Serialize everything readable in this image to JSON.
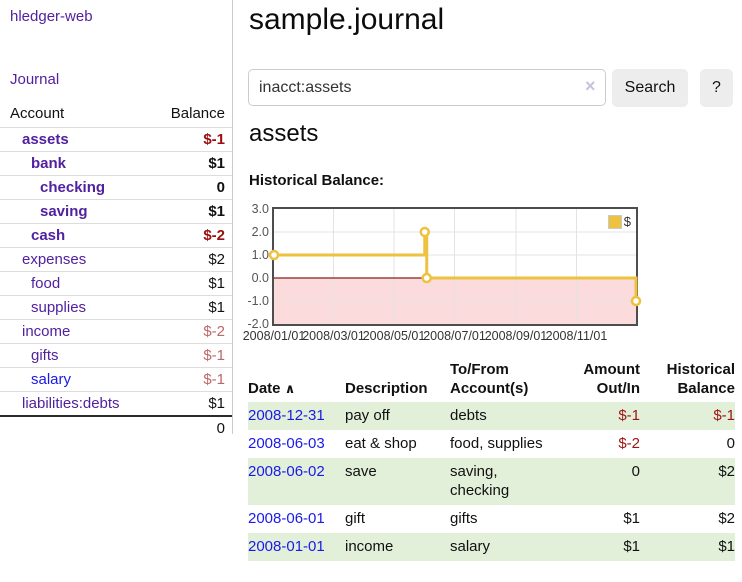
{
  "sidebar": {
    "app_title": "hledger-web",
    "nav": {
      "journal": "Journal"
    },
    "table": {
      "col_account": "Account",
      "col_balance": "Balance",
      "rows": [
        {
          "name": "assets",
          "balance": "$-1"
        },
        {
          "name": "bank",
          "balance": "$1"
        },
        {
          "name": "checking",
          "balance": "0"
        },
        {
          "name": "saving",
          "balance": "$1"
        },
        {
          "name": "cash",
          "balance": "$-2"
        },
        {
          "name": "expenses",
          "balance": "$2"
        },
        {
          "name": "food",
          "balance": "$1"
        },
        {
          "name": "supplies",
          "balance": "$1"
        },
        {
          "name": "income",
          "balance": "$-2"
        },
        {
          "name": "gifts",
          "balance": "$-1"
        },
        {
          "name": "salary",
          "balance": "$-1"
        },
        {
          "name": "liabilities:debts",
          "balance": "$1"
        }
      ],
      "total": "0"
    }
  },
  "main": {
    "title": "sample.journal",
    "search": {
      "value": "inacct:assets",
      "clear_icon": "×",
      "search_button": "Search",
      "help_button": "?"
    },
    "heading": "assets",
    "chart_title": "Historical Balance:"
  },
  "chart_data": {
    "type": "line",
    "style": "step",
    "title": "Historical Balance",
    "series": [
      {
        "name": "$",
        "color": "#edc240",
        "points": [
          [
            "2008-01-01",
            1
          ],
          [
            "2008-06-01",
            2
          ],
          [
            "2008-06-03",
            0
          ],
          [
            "2008-12-31",
            -1
          ]
        ]
      }
    ],
    "x_range": [
      "2008-01-01",
      "2008-12-31"
    ],
    "xticks": [
      "2008/01/01",
      "2008/03/01",
      "2008/05/01",
      "2008/07/01",
      "2008/09/01",
      "2008/11/01"
    ],
    "yticks": [
      3.0,
      2.0,
      1.0,
      0.0,
      -1.0,
      -2.0
    ],
    "ylim": [
      -2,
      3
    ],
    "grid": true,
    "legend_position": "top-right",
    "negative_region_color": "#fbdbdb",
    "zero_line_color": "#8b1c1c",
    "grid_color": "#e3e3e3"
  },
  "register": {
    "columns": {
      "date": "Date",
      "description": "Description",
      "tofrom": "To/From Account(s)",
      "amount": "Amount Out/In",
      "balance": "Historical Balance"
    },
    "sort_icon": "∧",
    "rows": [
      {
        "date": "2008-12-31",
        "description": "pay off",
        "accounts": "debts",
        "amount": "$-1",
        "balance": "$-1"
      },
      {
        "date": "2008-06-03",
        "description": "eat & shop",
        "accounts": "food, supplies",
        "amount": "$-2",
        "balance": "0"
      },
      {
        "date": "2008-06-02",
        "description": "save",
        "accounts": "saving, checking",
        "amount": "0",
        "balance": "$2"
      },
      {
        "date": "2008-06-01",
        "description": "gift",
        "accounts": "gifts",
        "amount": "$1",
        "balance": "$2"
      },
      {
        "date": "2008-01-01",
        "description": "income",
        "accounts": "salary",
        "amount": "$1",
        "balance": "$1"
      }
    ]
  },
  "colors": {
    "link_purple": "#52219f",
    "link_blue": "#1a1ae8",
    "negative_strong": "#9c0d0d",
    "negative_muted": "#bb6868",
    "row_stripe_green": "#e2f0da",
    "series_gold": "#edc240"
  }
}
